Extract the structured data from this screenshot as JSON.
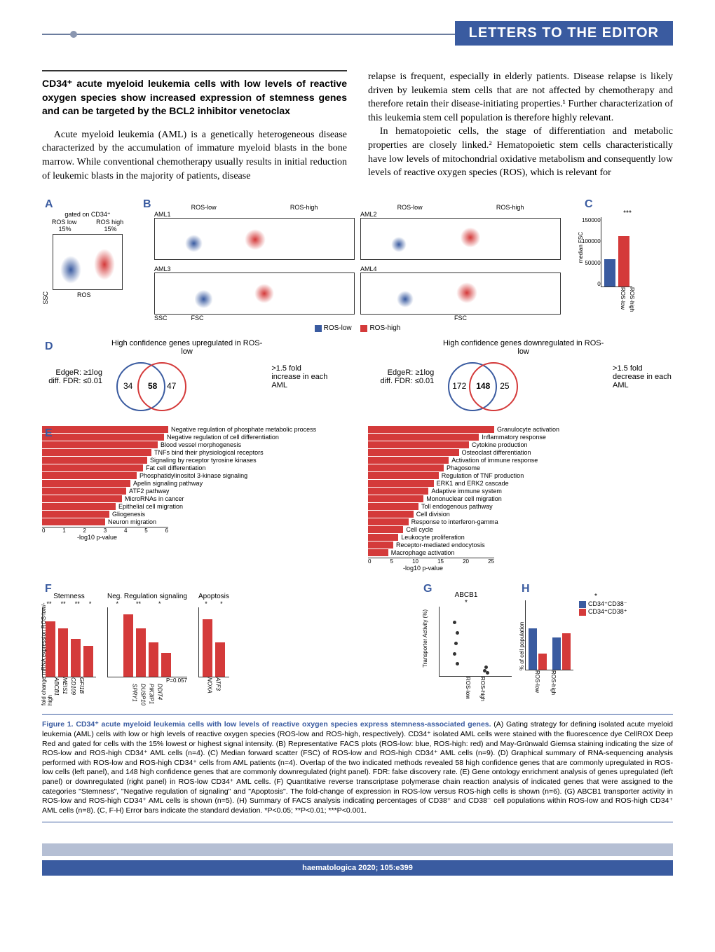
{
  "header": {
    "section_title": "LETTERS TO THE EDITOR"
  },
  "article": {
    "title": "CD34⁺ acute myeloid leukemia cells with low levels of reactive oxygen species show increased expression of stemness genes and can be targeted by the BCL2 inhibitor venetoclax",
    "col1_para1": "Acute myeloid leukemia (AML) is a genetically heterogeneous disease characterized by the accumulation of immature myeloid blasts in the bone marrow. While conventional chemotherapy usually results in initial reduction of leukemic blasts in the majority of patients, disease",
    "col2_para1": "relapse is frequent, especially in elderly patients. Disease relapse is likely driven by leukemia stem cells that are not affected by chemotherapy and therefore retain their disease-initiating properties.¹ Further characterization of this leukemia stem cell population is therefore highly relevant.",
    "col2_para2": "In hematopoietic cells, the stage of differentiation and metabolic properties are closely linked.² Hematopoietic stem cells characteristically have low levels of mitochondrial oxidative metabolism and consequently low levels of reactive oxygen species (ROS), which is relevant for"
  },
  "figure": {
    "panelA": {
      "label": "A",
      "title": "gated on CD34⁺",
      "ros_low": "ROS low",
      "ros_high": "ROS high",
      "pct_low": "15%",
      "pct_high": "15%",
      "y_axis": "SSC",
      "x_axis": "ROS"
    },
    "panelB": {
      "label": "B",
      "plots": [
        "AML1",
        "AML2",
        "AML3",
        "AML4"
      ],
      "col_headers": [
        "ROS-low",
        "ROS-high"
      ],
      "y_axis": "SSC",
      "x_axis": "FSC",
      "legend_low": "ROS-low",
      "legend_high": "ROS-high",
      "legend_low_color": "#3a5ba0",
      "legend_high_color": "#d43a3a"
    },
    "panelC": {
      "label": "C",
      "y_axis": "median FSC",
      "y_ticks": [
        "0",
        "50000",
        "100000",
        "150000"
      ],
      "x_labels": [
        "ROS-low",
        "ROS-high"
      ],
      "values": [
        60000,
        110000
      ],
      "sig": "***",
      "colors": [
        "#3a5ba0",
        "#d43a3a"
      ]
    },
    "panelD": {
      "label": "D",
      "left": {
        "title": "High confidence genes upregulated in ROS-low",
        "left_label": "EdgeR: ≥1log diff. FDR: ≤0.01",
        "right_label": ">1.5 fold increase in each AML",
        "n_left": "34",
        "n_overlap": "58",
        "n_right": "47"
      },
      "right": {
        "title": "High confidence genes downregulated in ROS-low",
        "left_label": "EdgeR: ≥1log diff. FDR: ≤0.01",
        "right_label": ">1.5 fold decrease in each AML",
        "n_left": "172",
        "n_overlap": "148",
        "n_right": "25"
      }
    },
    "panelE": {
      "label": "E",
      "x_axis": "-log10 p-value",
      "left": {
        "x_ticks": [
          "0",
          "1",
          "2",
          "3",
          "4",
          "5",
          "6"
        ],
        "bars": [
          {
            "v": 6,
            "l": "Negative regulation of phosphate metabolic process"
          },
          {
            "v": 5.8,
            "l": "Negative regulation of cell differentiation"
          },
          {
            "v": 5.5,
            "l": "Blood vessel morphogenesis"
          },
          {
            "v": 5.2,
            "l": "TNFs bind their physiological receptors"
          },
          {
            "v": 5.0,
            "l": "Signaling by receptor tyrosine kinases"
          },
          {
            "v": 4.8,
            "l": "Fat cell differentiation"
          },
          {
            "v": 4.5,
            "l": "Phosphatidylinositol 3-kinase signaling"
          },
          {
            "v": 4.2,
            "l": "Apelin signaling pathway"
          },
          {
            "v": 4.0,
            "l": "ATF2 pathway"
          },
          {
            "v": 3.8,
            "l": "MicroRNAs in cancer"
          },
          {
            "v": 3.5,
            "l": "Epithelial cell migration"
          },
          {
            "v": 3.2,
            "l": "Gliogenesis"
          },
          {
            "v": 3.0,
            "l": "Neuron migration"
          }
        ]
      },
      "right": {
        "x_ticks": [
          "0",
          "5",
          "10",
          "15",
          "20",
          "25"
        ],
        "bars": [
          {
            "v": 25,
            "l": "Granulocyte activation"
          },
          {
            "v": 22,
            "l": "Inflammatory response"
          },
          {
            "v": 20,
            "l": "Cytokine production"
          },
          {
            "v": 18,
            "l": "Osteoclast differentiation"
          },
          {
            "v": 16,
            "l": "Activation of immune response"
          },
          {
            "v": 15,
            "l": "Phagosome"
          },
          {
            "v": 14,
            "l": "Regulation of TNF production"
          },
          {
            "v": 13,
            "l": "ERK1 and ERK2 cascade"
          },
          {
            "v": 12,
            "l": "Adaptive immune system"
          },
          {
            "v": 11,
            "l": "Mononuclear cell migration"
          },
          {
            "v": 10,
            "l": "Toll endogenous pathway"
          },
          {
            "v": 9,
            "l": "Cell division"
          },
          {
            "v": 8,
            "l": "Response to interferon-gamma"
          },
          {
            "v": 7,
            "l": "Cell cycle"
          },
          {
            "v": 6,
            "l": "Leukocyte proliferation"
          },
          {
            "v": 5,
            "l": "Receptor-mediated endocytosis"
          },
          {
            "v": 4,
            "l": "Macrophage activation"
          }
        ]
      }
    },
    "panelF": {
      "label": "F",
      "y_axis": "fold change mRNA expression ROS-low/-high",
      "groups": [
        {
          "title": "Stemness",
          "ymax": 20,
          "genes": [
            "ABCB1",
            "MEIS1",
            "CD109",
            "GFI1B"
          ],
          "vals": [
            16,
            14,
            11,
            9
          ],
          "sig": [
            "**",
            "**",
            "**",
            "*"
          ]
        },
        {
          "title": "Neg. Regulation signaling",
          "ymax": 10,
          "genes": [
            "SPRY1",
            "DUSP10",
            "PIK3IP1",
            "DDIT4"
          ],
          "vals": [
            9,
            7,
            5,
            3.5
          ],
          "sig": [
            "*",
            "**",
            "*",
            ""
          ],
          "note": "P=0.057"
        },
        {
          "title": "Apoptosis",
          "ymax": 6,
          "genes": [
            "NOXA",
            "ATF3"
          ],
          "vals": [
            5,
            3
          ],
          "sig": [
            "*",
            "*"
          ]
        }
      ]
    },
    "panelG": {
      "label": "G",
      "title": "ABCB1",
      "y_axis": "Transporter Activity (%)",
      "y_ticks": [
        "0",
        "20",
        "40",
        "60",
        "80"
      ],
      "x_labels": [
        "ROS-low",
        "ROS-high"
      ],
      "sig": "*"
    },
    "panelH": {
      "label": "H",
      "y_axis": "% of cell population",
      "y_ticks": [
        "0",
        "50",
        "100",
        "150"
      ],
      "x_labels": [
        "ROS-low",
        "ROS-high"
      ],
      "legend": [
        "CD34⁺CD38⁻",
        "CD34⁺CD38⁺"
      ],
      "legend_colors": [
        "#3a5ba0",
        "#d43a3a"
      ],
      "vals": {
        "ros_low": [
          90,
          35
        ],
        "ros_high": [
          70,
          80
        ]
      },
      "sig": "*"
    },
    "caption_title": "Figure 1. CD34⁺ acute myeloid leukemia cells with low levels of reactive oxygen species express stemness-associated genes.",
    "caption_body": " (A) Gating strategy for defining isolated acute myeloid leukemia (AML) cells with low or high levels of reactive oxygen species (ROS-low and ROS-high, respectively). CD34⁺ isolated AML cells were stained with the fluorescence dye CellROX Deep Red and gated for cells with the 15% lowest or highest signal intensity. (B) Representative FACS plots (ROS-low: blue, ROS-high: red) and May-Grünwald Giemsa staining indicating the size of ROS-low and ROS-high CD34⁺ AML cells (n=4). (C) Median forward scatter (FSC) of ROS-low and ROS-high CD34⁺ AML cells (n=9). (D) Graphical summary of RNA-sequencing analysis performed with ROS-low and ROS-high CD34⁺ cells from AML patients (n=4). Overlap of the two indicated methods revealed 58 high confidence genes that are commonly upregulated in ROS-low cells (left panel), and 148 high confidence genes that are commonly downregulated (right panel). FDR: false discovery rate. (E) Gene ontology enrichment analysis of genes upregulated (left panel) or downregulated (right panel) in ROS-low CD34⁺ AML cells. (F) Quantitative reverse transcriptase polymerase chain reaction analysis of indicated genes that were assigned to the categories \"Stemness\", \"Negative regulation of signaling\" and \"Apoptosis\". The fold-change of expression in ROS-low versus ROS-high cells is shown (n=6). (G) ABCB1 transporter activity in ROS-low and ROS-high CD34⁺ AML cells is shown (n=5). (H) Summary of FACS analysis indicating percentages of CD38⁺ and CD38⁻ cell populations within ROS-low and ROS-high CD34⁺ AML cells (n=8). (C, F-H) Error bars indicate the standard deviation. *P<0.05; **P<0.01; ***P<0.001."
  },
  "footer": {
    "citation": "haematologica 2020; 105:e399"
  }
}
